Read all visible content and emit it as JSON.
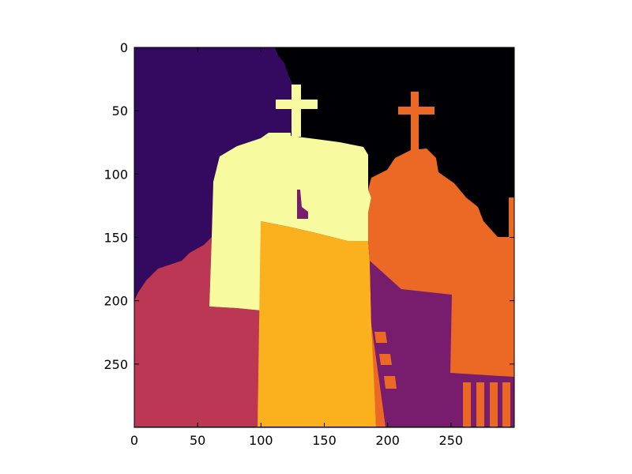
{
  "chart_data": {
    "type": "heatmap",
    "colormap": "inferno",
    "content": "segmentation label map of two church towers with crosses",
    "x_ticks": [
      "0",
      "50",
      "100",
      "150",
      "200",
      "250"
    ],
    "y_ticks": [
      "0",
      "50",
      "100",
      "150",
      "200",
      "250"
    ],
    "xlim": [
      0,
      299
    ],
    "ylim": [
      299,
      0
    ],
    "grid": false,
    "colors": {
      "sky_left": "#330a5f",
      "sky_right": "#000004",
      "left_tower_wall": "#f8fa9f",
      "center_wall": "#fbb01e",
      "right_church": "#ec6925",
      "doors_and_shadow": "#781c6d",
      "left_ground": "#bb3754"
    }
  }
}
